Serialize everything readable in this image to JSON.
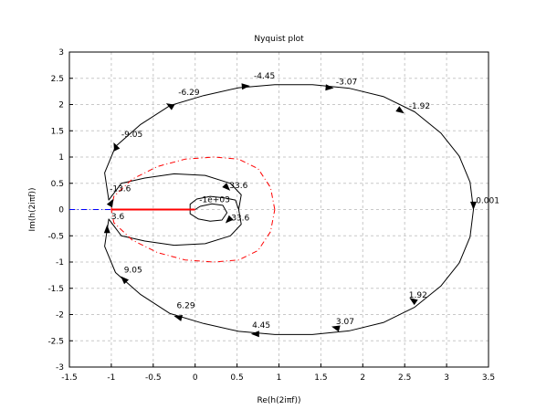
{
  "chart_data": {
    "type": "line",
    "title": "Nyquist plot",
    "xlabel": "Re(h(2iπf))",
    "ylabel": "Im(h(2iπf))",
    "xlim": [
      -1.5,
      3.5
    ],
    "ylim": [
      -3,
      3
    ],
    "xticks": [
      "-1.5",
      "-1",
      "-0.5",
      "0",
      "0.5",
      "1",
      "1.5",
      "2",
      "2.5",
      "3",
      "3.5"
    ],
    "yticks": [
      "-3",
      "-2.5",
      "-2",
      "-1.5",
      "-1",
      "-0.5",
      "0",
      "0.5",
      "1",
      "1.5",
      "2",
      "2.5",
      "3"
    ],
    "grid": true,
    "series": [
      {
        "color": "#000000",
        "points": [
          [
            3.32,
            0.0
          ],
          [
            3.28,
            0.52
          ],
          [
            3.15,
            1.02
          ],
          [
            2.93,
            1.46
          ],
          [
            2.62,
            1.86
          ],
          [
            2.25,
            2.15
          ],
          [
            1.84,
            2.31
          ],
          [
            1.4,
            2.38
          ],
          [
            0.95,
            2.38
          ],
          [
            0.52,
            2.32
          ],
          [
            0.1,
            2.17
          ],
          [
            -0.3,
            1.98
          ],
          [
            -0.65,
            1.62
          ],
          [
            -0.95,
            1.2
          ],
          [
            -1.08,
            0.7
          ],
          [
            -1.03,
            0.18
          ],
          [
            -0.88,
            0.5
          ],
          [
            -0.6,
            0.6
          ],
          [
            -0.25,
            0.68
          ],
          [
            0.12,
            0.65
          ],
          [
            0.42,
            0.5
          ],
          [
            0.55,
            0.28
          ],
          [
            0.52,
            0.0
          ]
        ]
      },
      {
        "color": "#000000",
        "points": [
          [
            3.32,
            0.0
          ],
          [
            3.28,
            -0.52
          ],
          [
            3.15,
            -1.02
          ],
          [
            2.93,
            -1.46
          ],
          [
            2.62,
            -1.86
          ],
          [
            2.25,
            -2.15
          ],
          [
            1.84,
            -2.31
          ],
          [
            1.4,
            -2.38
          ],
          [
            0.95,
            -2.38
          ],
          [
            0.52,
            -2.32
          ],
          [
            0.1,
            -2.17
          ],
          [
            -0.3,
            -1.98
          ],
          [
            -0.65,
            -1.62
          ],
          [
            -0.95,
            -1.2
          ],
          [
            -1.08,
            -0.7
          ],
          [
            -1.03,
            -0.18
          ],
          [
            -0.88,
            -0.5
          ],
          [
            -0.6,
            -0.6
          ],
          [
            -0.25,
            -0.68
          ],
          [
            0.12,
            -0.65
          ],
          [
            0.42,
            -0.5
          ],
          [
            0.55,
            -0.28
          ],
          [
            0.52,
            0.0
          ]
        ]
      },
      {
        "color": "#000000",
        "points": [
          [
            0.52,
            0.0
          ],
          [
            0.48,
            0.18
          ],
          [
            0.35,
            0.22
          ],
          [
            0.18,
            0.25
          ],
          [
            0.02,
            0.2
          ],
          [
            -0.06,
            0.1
          ],
          [
            -0.06,
            -0.08
          ],
          [
            0.04,
            -0.18
          ],
          [
            0.18,
            -0.22
          ],
          [
            0.32,
            -0.2
          ],
          [
            0.38,
            -0.06
          ],
          [
            0.33,
            0.08
          ],
          [
            0.2,
            0.11
          ],
          [
            0.06,
            0.06
          ],
          [
            0.0,
            0.0
          ]
        ]
      },
      {
        "color": "#ff0000",
        "style": "dash-dot",
        "points": [
          [
            0.95,
            0.0
          ],
          [
            0.9,
            0.42
          ],
          [
            0.75,
            0.78
          ],
          [
            0.52,
            0.96
          ],
          [
            0.22,
            1.0
          ],
          [
            -0.12,
            0.96
          ],
          [
            -0.45,
            0.82
          ],
          [
            -0.75,
            0.58
          ],
          [
            -0.97,
            0.25
          ],
          [
            -1.0,
            0.0
          ],
          [
            -0.97,
            -0.25
          ],
          [
            -0.75,
            -0.58
          ],
          [
            -0.45,
            -0.82
          ],
          [
            -0.12,
            -0.96
          ],
          [
            0.22,
            -1.0
          ],
          [
            0.52,
            -0.96
          ],
          [
            0.75,
            -0.78
          ],
          [
            0.9,
            -0.42
          ],
          [
            0.95,
            0.0
          ]
        ]
      },
      {
        "color": "#ff0000",
        "width": 2,
        "points": [
          [
            -1.0,
            0.0
          ],
          [
            0.0,
            0.0
          ]
        ]
      },
      {
        "color": "#0000ff",
        "style": "dash-dot",
        "points": [
          [
            -1.5,
            0.0
          ],
          [
            -1.0,
            0.0
          ]
        ]
      }
    ],
    "arrows": [
      {
        "x": 0.6,
        "y": 2.35,
        "angle": 5
      },
      {
        "x": 1.6,
        "y": 2.32,
        "angle": -5
      },
      {
        "x": 2.45,
        "y": 1.88,
        "angle": -35
      },
      {
        "x": 3.32,
        "y": 0.08,
        "angle": -90
      },
      {
        "x": -0.3,
        "y": 1.98,
        "angle": 150
      },
      {
        "x": -0.95,
        "y": 1.2,
        "angle": 115
      },
      {
        "x": -1.0,
        "y": 0.13,
        "angle": 60
      },
      {
        "x": 0.38,
        "y": 0.42,
        "angle": -45
      },
      {
        "x": 2.6,
        "y": -1.73,
        "angle": 145
      },
      {
        "x": 1.68,
        "y": -2.25,
        "angle": 165
      },
      {
        "x": 0.72,
        "y": -2.37,
        "angle": 180
      },
      {
        "x": -0.2,
        "y": -2.05,
        "angle": 165
      },
      {
        "x": -0.85,
        "y": -1.33,
        "angle": 135
      },
      {
        "x": -1.05,
        "y": -0.38,
        "angle": 90
      },
      {
        "x": 0.4,
        "y": -0.2,
        "angle": -135
      }
    ],
    "labels": [
      {
        "text": "-4.45",
        "x": 0.7,
        "y": 2.5
      },
      {
        "text": "-3.07",
        "x": 1.68,
        "y": 2.38
      },
      {
        "text": "-1.92",
        "x": 2.55,
        "y": 1.92
      },
      {
        "text": "0.001",
        "x": 3.35,
        "y": 0.12
      },
      {
        "text": "-6.29",
        "x": -0.2,
        "y": 2.18
      },
      {
        "text": "-9.05",
        "x": -0.88,
        "y": 1.38
      },
      {
        "text": "-13.6",
        "x": -1.02,
        "y": 0.35
      },
      {
        "text": "-1e+03",
        "x": 0.05,
        "y": 0.14
      },
      {
        "text": "33.6",
        "x": 0.41,
        "y": 0.41
      },
      {
        "text": "3.6",
        "x": -1.0,
        "y": -0.18
      },
      {
        "text": "33.6",
        "x": 0.43,
        "y": -0.21
      },
      {
        "text": "9.05",
        "x": -0.85,
        "y": -1.2
      },
      {
        "text": "6.29",
        "x": -0.22,
        "y": -1.88
      },
      {
        "text": "4.45",
        "x": 0.68,
        "y": -2.25
      },
      {
        "text": "3.07",
        "x": 1.68,
        "y": -2.18
      },
      {
        "text": "1.92",
        "x": 2.55,
        "y": -1.68
      }
    ]
  }
}
